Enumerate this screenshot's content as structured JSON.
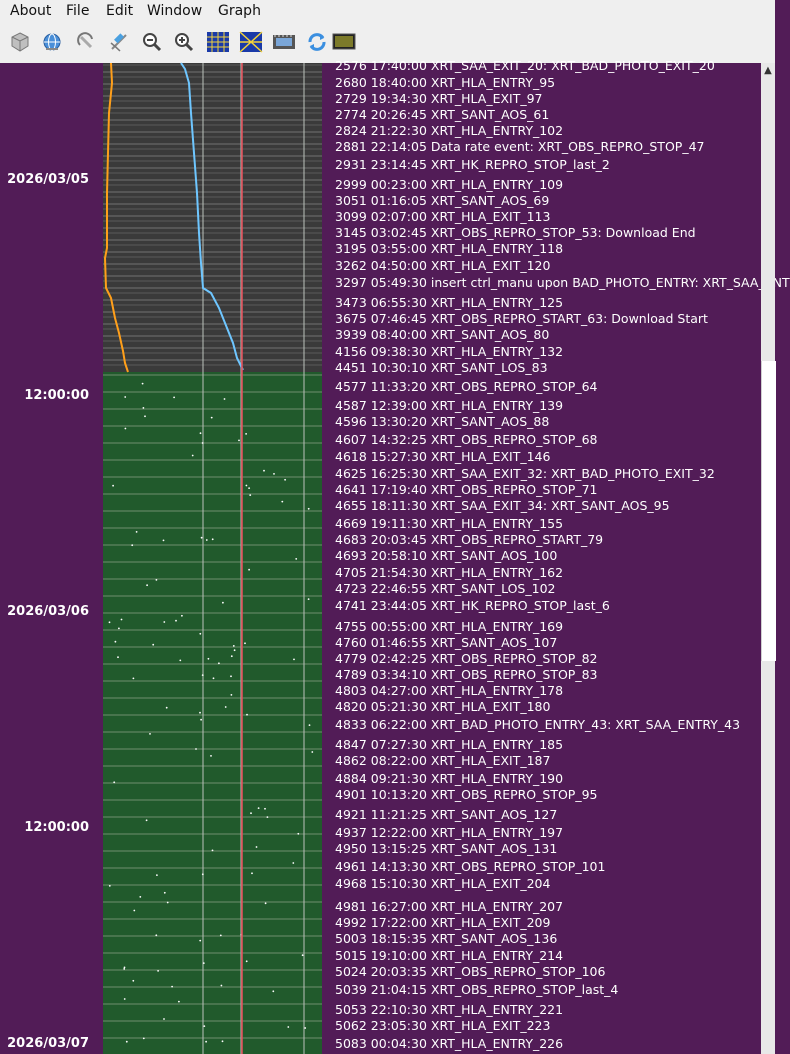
{
  "menu": [
    {
      "label": "About",
      "key": "about"
    },
    {
      "label": "File",
      "key": "file"
    },
    {
      "label": "Edit",
      "key": "edit"
    },
    {
      "label": "Window",
      "key": "window"
    },
    {
      "label": "Graph",
      "key": "graph"
    }
  ],
  "toolbar": [
    {
      "icon": "cube-icon"
    },
    {
      "icon": "globe-icon"
    },
    {
      "icon": "rotate-icon"
    },
    {
      "icon": "satellite-icon"
    },
    {
      "icon": "zoom-out-icon"
    },
    {
      "icon": "zoom-in-icon"
    },
    {
      "icon": "grid-icon"
    },
    {
      "icon": "pattern-icon"
    },
    {
      "icon": "film-icon"
    },
    {
      "icon": "refresh-icon"
    },
    {
      "icon": "display-icon"
    }
  ],
  "timeline": {
    "date_labels": [
      "2026/03/05",
      "12:00:00",
      "2026/03/06",
      "12:00:00",
      "2026/03/07"
    ],
    "events": [
      "2576 17:40:00 XRT_SAA_EXIT_20: XRT_BAD_PHOTO_EXIT_20",
      "2680 18:40:00 XRT_HLA_ENTRY_95",
      "2729 19:34:30 XRT_HLA_EXIT_97",
      "2774 20:26:45 XRT_SANT_AOS_61",
      "2824 21:22:30 XRT_HLA_ENTRY_102",
      "2881 22:14:05 Data rate event: XRT_OBS_REPRO_STOP_47",
      "2931 23:14:45 XRT_HK_REPRO_STOP_last_2",
      "2999 00:23:00 XRT_HLA_ENTRY_109",
      "3051 01:16:05 XRT_SANT_AOS_69",
      "3099 02:07:00 XRT_HLA_EXIT_113",
      "3145 03:02:45 XRT_OBS_REPRO_STOP_53: Download End",
      "3195 03:55:00 XRT_HLA_ENTRY_118",
      "3262 04:50:00 XRT_HLA_EXIT_120",
      "3297 05:49:30 insert ctrl_manu upon BAD_PHOTO_ENTRY: XRT_SAA_ENT",
      "3473 06:55:30 XRT_HLA_ENTRY_125",
      "3675 07:46:45 XRT_OBS_REPRO_START_63: Download Start",
      "3939 08:40:00 XRT_SANT_AOS_80",
      "4156 09:38:30 XRT_HLA_ENTRY_132",
      "4451 10:30:10 XRT_SANT_LOS_83",
      "4577 11:33:20 XRT_OBS_REPRO_STOP_64",
      "4587 12:39:00 XRT_HLA_ENTRY_139",
      "4596 13:30:20 XRT_SANT_AOS_88",
      "4607 14:32:25 XRT_OBS_REPRO_STOP_68",
      "4618 15:27:30 XRT_HLA_EXIT_146",
      "4625 16:25:30 XRT_SAA_EXIT_32: XRT_BAD_PHOTO_EXIT_32",
      "4641 17:19:40 XRT_OBS_REPRO_STOP_71",
      "4655 18:11:30 XRT_SAA_EXIT_34: XRT_SANT_AOS_95",
      "4669 19:11:30 XRT_HLA_ENTRY_155",
      "4683 20:03:45 XRT_OBS_REPRO_START_79",
      "4693 20:58:10 XRT_SANT_AOS_100",
      "4705 21:54:30 XRT_HLA_ENTRY_162",
      "4723 22:46:55 XRT_SANT_LOS_102",
      "4741 23:44:05 XRT_HK_REPRO_STOP_last_6",
      "4755 00:55:00 XRT_HLA_ENTRY_169",
      "4760 01:46:55 XRT_SANT_AOS_107",
      "4779 02:42:25 XRT_OBS_REPRO_STOP_82",
      "4789 03:34:10 XRT_OBS_REPRO_STOP_83",
      "4803 04:27:00 XRT_HLA_ENTRY_178",
      "4820 05:21:30 XRT_HLA_EXIT_180",
      "4833 06:22:00 XRT_BAD_PHOTO_ENTRY_43: XRT_SAA_ENTRY_43",
      "4847 07:27:30 XRT_HLA_ENTRY_185",
      "4862 08:22:00 XRT_HLA_EXIT_187",
      "4884 09:21:30 XRT_HLA_ENTRY_190",
      "4901 10:13:20 XRT_OBS_REPRO_STOP_95",
      "4921 11:21:25 XRT_SANT_AOS_127",
      "4937 12:22:00 XRT_HLA_ENTRY_197",
      "4950 13:15:25 XRT_SANT_AOS_131",
      "4961 14:13:30 XRT_OBS_REPRO_STOP_101",
      "4968 15:10:30 XRT_HLA_EXIT_204",
      "4981 16:27:00 XRT_HLA_ENTRY_207",
      "4992 17:22:00 XRT_HLA_EXIT_209",
      "5003 18:15:35 XRT_SANT_AOS_136",
      "5015 19:10:00 XRT_HLA_ENTRY_214",
      "5024 20:03:35 XRT_OBS_REPRO_STOP_106",
      "5039 21:04:15 XRT_OBS_REPRO_STOP_last_4",
      "5053 22:10:30 XRT_HLA_ENTRY_221",
      "5062 23:05:30 XRT_HLA_EXIT_223",
      "5083 00:04:30 XRT_HLA_ENTRY_226"
    ]
  },
  "colors": {
    "background": "#521c57",
    "strip_past": "#3a3a3a",
    "strip_future": "#215a2c",
    "orange_trace": "#ff9f1a",
    "blue_trace": "#6ec6ff",
    "red_marker": "#e0505a"
  }
}
